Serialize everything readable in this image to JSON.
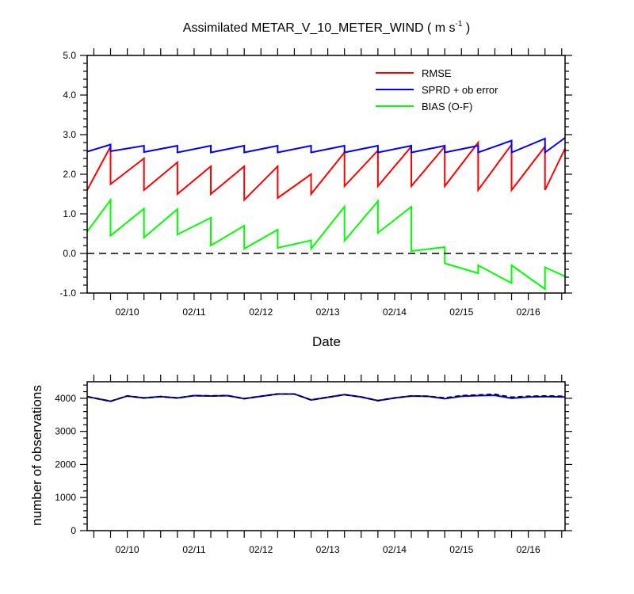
{
  "chart_data": [
    {
      "type": "line",
      "title": "Assimilated METAR_V_10_METER_WIND ( m s",
      "title_sup": "-1",
      "title_end": " )",
      "xlabel": "Date",
      "ylabel": "",
      "ylim": [
        -1.0,
        5.0
      ],
      "yticks": [
        "5.0",
        "4.0",
        "3.0",
        "2.0",
        "1.0",
        "0.0",
        "-1.0"
      ],
      "xlim": [
        9.4,
        16.55
      ],
      "xticks": [
        "02/10",
        "02/11",
        "02/12",
        "02/13",
        "02/14",
        "02/15",
        "02/16"
      ],
      "reference_line": 0.0,
      "legend_position": "top-right",
      "series": [
        {
          "name": "RMSE",
          "color": "#ff0000",
          "x": [
            9.4,
            9.75,
            9.75,
            10.25,
            10.25,
            10.75,
            10.75,
            11.25,
            11.25,
            11.75,
            11.75,
            12.25,
            12.25,
            12.75,
            12.75,
            13.25,
            13.25,
            13.75,
            13.75,
            14.25,
            14.25,
            14.75,
            14.75,
            15.25,
            15.25,
            15.75,
            15.75,
            16.25,
            16.25,
            16.55
          ],
          "y": [
            1.6,
            2.7,
            1.75,
            2.4,
            1.6,
            2.3,
            1.5,
            2.2,
            1.5,
            2.2,
            1.35,
            2.2,
            1.4,
            2.0,
            1.5,
            2.55,
            1.7,
            2.6,
            1.7,
            2.7,
            1.7,
            2.7,
            1.7,
            2.8,
            1.6,
            2.75,
            1.6,
            2.7,
            1.6,
            2.65
          ]
        },
        {
          "name": "SPRD + ob error",
          "color": "#0000ff",
          "x": [
            9.4,
            9.75,
            9.75,
            10.25,
            10.25,
            10.75,
            10.75,
            11.25,
            11.25,
            11.75,
            11.75,
            12.25,
            12.25,
            12.75,
            12.75,
            13.25,
            13.25,
            13.75,
            13.75,
            14.25,
            14.25,
            14.75,
            14.75,
            15.25,
            15.25,
            15.75,
            15.75,
            16.25,
            16.25,
            16.55
          ],
          "y": [
            2.57,
            2.75,
            2.58,
            2.72,
            2.56,
            2.72,
            2.55,
            2.72,
            2.55,
            2.72,
            2.55,
            2.72,
            2.55,
            2.72,
            2.55,
            2.72,
            2.55,
            2.72,
            2.55,
            2.72,
            2.55,
            2.72,
            2.55,
            2.72,
            2.55,
            2.85,
            2.55,
            2.9,
            2.55,
            2.92
          ]
        },
        {
          "name": "BIAS (O-F)",
          "color": "#00ff00",
          "x": [
            9.4,
            9.75,
            9.75,
            10.25,
            10.25,
            10.75,
            10.75,
            11.25,
            11.25,
            11.75,
            11.75,
            12.25,
            12.25,
            12.75,
            12.75,
            13.25,
            13.25,
            13.75,
            13.75,
            14.25,
            14.25,
            14.75,
            14.75,
            15.25,
            15.25,
            15.75,
            15.75,
            16.25,
            16.25,
            16.55
          ],
          "y": [
            0.55,
            1.35,
            0.45,
            1.13,
            0.4,
            1.12,
            0.48,
            0.9,
            0.2,
            0.7,
            0.12,
            0.6,
            0.14,
            0.33,
            0.12,
            1.18,
            0.32,
            1.32,
            0.52,
            1.18,
            0.06,
            0.16,
            -0.25,
            -0.5,
            -0.3,
            -0.75,
            -0.3,
            -0.9,
            -0.35,
            -0.58
          ]
        }
      ]
    },
    {
      "type": "line",
      "title": "",
      "xlabel": "",
      "ylabel": "number of observations",
      "ylim": [
        0,
        4500
      ],
      "yticks": [
        "4000",
        "3000",
        "2000",
        "1000",
        "0"
      ],
      "xlim": [
        9.4,
        16.55
      ],
      "xticks": [
        "02/10",
        "02/11",
        "02/12",
        "02/13",
        "02/14",
        "02/15",
        "02/16"
      ],
      "series": [
        {
          "name": "",
          "color": "#0000ff",
          "style": "solid",
          "x": [
            9.4,
            9.75,
            10.0,
            10.25,
            10.5,
            10.75,
            11.0,
            11.25,
            11.5,
            11.75,
            12.0,
            12.25,
            12.5,
            12.75,
            13.0,
            13.25,
            13.5,
            13.75,
            14.0,
            14.25,
            14.5,
            14.75,
            15.0,
            15.25,
            15.5,
            15.75,
            16.0,
            16.25,
            16.55
          ],
          "y": [
            4050,
            3910,
            4070,
            4010,
            4050,
            4010,
            4080,
            4070,
            4080,
            3990,
            4060,
            4130,
            4130,
            3950,
            4030,
            4110,
            4040,
            3930,
            4010,
            4070,
            4060,
            3990,
            4060,
            4080,
            4090,
            4000,
            4040,
            4050,
            4040
          ]
        },
        {
          "name": "",
          "color": "#000000",
          "style": "dashed",
          "x": [
            9.4,
            9.75,
            10.0,
            10.25,
            10.5,
            10.75,
            11.0,
            11.25,
            11.5,
            11.75,
            12.0,
            12.25,
            12.5,
            12.75,
            13.0,
            13.25,
            13.5,
            13.75,
            14.0,
            14.25,
            14.5,
            14.75,
            15.0,
            15.25,
            15.5,
            15.75,
            16.0,
            16.25,
            16.55
          ],
          "y": [
            4050,
            3910,
            4070,
            4010,
            4050,
            4010,
            4080,
            4070,
            4080,
            3990,
            4060,
            4130,
            4130,
            3950,
            4030,
            4110,
            4040,
            3930,
            4010,
            4070,
            4060,
            4010,
            4080,
            4100,
            4120,
            4030,
            4060,
            4070,
            4060
          ]
        }
      ]
    }
  ]
}
